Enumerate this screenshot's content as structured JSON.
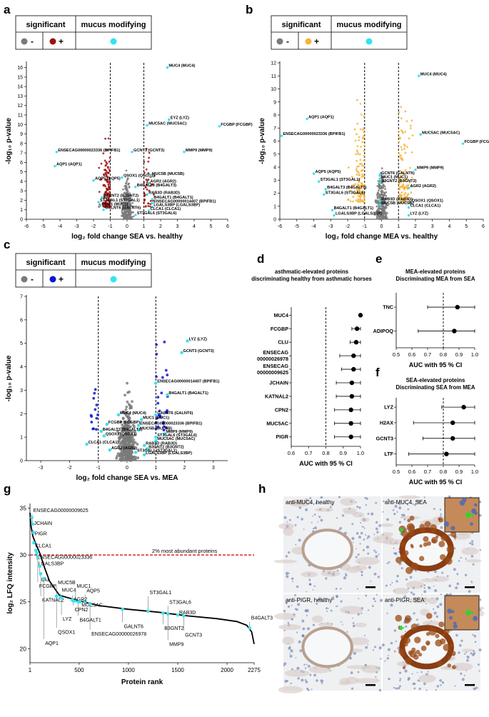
{
  "panels": {
    "a": "a",
    "b": "b",
    "c": "c",
    "d": "d",
    "e": "e",
    "f": "f",
    "g": "g",
    "h": "h"
  },
  "legend": {
    "significant": "significant",
    "mucus": "mucus modifying",
    "minus": "-",
    "plus": "+"
  },
  "colors": {
    "gray": "#7a7a7a",
    "red": "#9b1111",
    "orange": "#f4b53c",
    "blue": "#0b14d6",
    "cyan": "#35e3ee",
    "teal": "#3b8f93",
    "dashed_red": "#d10000"
  },
  "chart_data": [
    {
      "id": "a",
      "type": "scatter",
      "xlabel": "log₂ fold change SEA vs. healthy",
      "ylabel": "-log₁₀ p-value",
      "xlim": [
        -6,
        6
      ],
      "ylim": [
        0,
        16.5
      ],
      "xticks": [
        "-6",
        "-5",
        "-4",
        "-3",
        "-2",
        "-1",
        "0",
        "1",
        "2",
        "3",
        "4",
        "5",
        "6"
      ],
      "yticks": [
        "0",
        "1",
        "2",
        "3",
        "4",
        "5",
        "6",
        "7",
        "8",
        "9",
        "10",
        "11",
        "12",
        "13",
        "14",
        "15",
        "16"
      ],
      "thresholds_x": [
        -1,
        1
      ],
      "labels": [
        {
          "x": 2.4,
          "y": 16,
          "text": "MUC4 (MUC4)"
        },
        {
          "x": 2.5,
          "y": 10.5,
          "text": "EYZ (LYZ)"
        },
        {
          "x": 1.2,
          "y": 9.9,
          "text": "MUC5AC (MUC5AC)"
        },
        {
          "x": 5.5,
          "y": 9.8,
          "text": "FCGBP (FCGBP)"
        },
        {
          "x": 0.3,
          "y": 7.1,
          "text": "GCNT3 (GCNT3)"
        },
        {
          "x": -4.2,
          "y": 7.1,
          "text": "ENSECAG00000023336 (BPIFB1)"
        },
        {
          "x": 3.4,
          "y": 7.1,
          "text": "MMP9 (MMP9)"
        },
        {
          "x": -4.3,
          "y": 5.6,
          "text": "AQP1 (AQP1)"
        },
        {
          "x": -0.3,
          "y": 4.4,
          "text": "QSOX1 (QSOX1)"
        },
        {
          "x": 1.4,
          "y": 4.6,
          "text": "MUC5B (MUC5B)"
        },
        {
          "x": -2.0,
          "y": 4.1,
          "text": "AQP5 (AQP5)"
        },
        {
          "x": 1.3,
          "y": 3.8,
          "text": "AGR2 (AGR2)"
        },
        {
          "x": 0.5,
          "y": 3.4,
          "text": "B4GALT3 (B4GALT3)"
        },
        {
          "x": 1.2,
          "y": 2.6,
          "text": "RAB3D (RAB3D)"
        },
        {
          "x": -1.5,
          "y": 2.3,
          "text": "B3GNT2 (B3GNT2)"
        },
        {
          "x": 1.5,
          "y": 2.1,
          "text": "B4GALT1 (B4GALT1)"
        },
        {
          "x": -1.7,
          "y": 1.8,
          "text": "ST3GAL1 (ST3GAL1)"
        },
        {
          "x": 1.5,
          "y": 1.7,
          "text": "ENSECAG00000014407 (BPIFB1)"
        },
        {
          "x": -1.6,
          "y": 1.4,
          "text": "MUC1 (MUC1)"
        },
        {
          "x": 1.5,
          "y": 1.3,
          "text": "LGALS3BP (LGALS3BP)"
        },
        {
          "x": -1.4,
          "y": 1.0,
          "text": "GALNT6 (GALNT6)"
        },
        {
          "x": 1.3,
          "y": 0.9,
          "text": "CLCA1 (CLCA1)"
        },
        {
          "x": 0.5,
          "y": 0.45,
          "text": "ST3GAL6 (ST3GAL6)"
        }
      ]
    },
    {
      "id": "b",
      "type": "scatter",
      "xlabel": "log₂ fold change MEA vs. healthy",
      "ylabel": "-log₁₀ p-value",
      "xlim": [
        -6,
        6
      ],
      "ylim": [
        0,
        12
      ],
      "xticks": [
        "-6",
        "-5",
        "-4",
        "-3",
        "-2",
        "-1",
        "0",
        "1",
        "2",
        "3",
        "4",
        "5",
        "6"
      ],
      "yticks": [
        "0",
        "1",
        "2",
        "3",
        "4",
        "5",
        "6",
        "7",
        "8",
        "9",
        "10",
        "11",
        "12"
      ],
      "thresholds_x": [
        -1,
        1
      ],
      "labels": [
        {
          "x": 2.2,
          "y": 11,
          "text": "MUC4 (MUC4)"
        },
        {
          "x": -4.4,
          "y": 7.7,
          "text": "AQP1 (AQP1)"
        },
        {
          "x": 2.3,
          "y": 6.5,
          "text": "MUC5AC (MUC5AC)"
        },
        {
          "x": -5.9,
          "y": 6.4,
          "text": "ENSECAG00000023336 (BPIFB1)"
        },
        {
          "x": 4.8,
          "y": 5.8,
          "text": "FCGBP (FCGBP)"
        },
        {
          "x": 2.0,
          "y": 3.8,
          "text": "MMP9 (MMP9)"
        },
        {
          "x": -4.0,
          "y": 3.5,
          "text": "AQP5 (AQP5)"
        },
        {
          "x": -0.1,
          "y": 3.4,
          "text": "GCNT6 (GALNT6)"
        },
        {
          "x": -0.1,
          "y": 3.1,
          "text": "MUC1 (MUC1)"
        },
        {
          "x": -3.7,
          "y": 2.9,
          "text": "ST3GAL1 (ST3GAL1)"
        },
        {
          "x": -0.1,
          "y": 2.8,
          "text": "B3GNT2 (B3GNT2)"
        },
        {
          "x": -3.3,
          "y": 2.3,
          "text": "B4GALT3 (B4GALT3)"
        },
        {
          "x": 1.6,
          "y": 2.4,
          "text": "AGR2 (AGR2)"
        },
        {
          "x": -3.4,
          "y": 1.9,
          "text": "ST3GAL6 (ST3GAL6)"
        },
        {
          "x": -0.1,
          "y": 1.4,
          "text": "RAB3D (RAB3D)"
        },
        {
          "x": 1.7,
          "y": 1.3,
          "text": "QSOX1 (QSOX1)"
        },
        {
          "x": -0.1,
          "y": 1.1,
          "text": "MUC5B (MUC5B)"
        },
        {
          "x": 1.6,
          "y": 0.9,
          "text": "CLCA1 (CLCA1)"
        },
        {
          "x": -2.9,
          "y": 0.7,
          "text": "B4GALT1 (B4GALT1)"
        },
        {
          "x": -2.8,
          "y": 0.3,
          "text": "LGALS3BP (LGALS3BP)"
        },
        {
          "x": 1.6,
          "y": 0.3,
          "text": "LYZ (LYZ)"
        }
      ]
    },
    {
      "id": "c",
      "type": "scatter",
      "xlabel": "log₂ fold change SEA vs. MEA",
      "ylabel": "-log₁₀ p-value",
      "xlim": [
        -3.5,
        3.5
      ],
      "ylim": [
        0,
        7
      ],
      "xticks": [
        "-3",
        "-2",
        "-1",
        "0",
        "1",
        "2",
        "3"
      ],
      "yticks": [
        "0",
        "1",
        "2",
        "3",
        "4",
        "5",
        "6",
        "7"
      ],
      "thresholds_x": [
        -1,
        1
      ],
      "labels": [
        {
          "x": 2.1,
          "y": 5.1,
          "text": "LYZ (LYZ)"
        },
        {
          "x": 1.9,
          "y": 4.6,
          "text": "GCNT3 (GCNT3)"
        },
        {
          "x": 1.0,
          "y": 3.3,
          "text": "ENSECAG00000014407 (BPIFB1)"
        },
        {
          "x": 1.4,
          "y": 2.8,
          "text": "B4GALT1 (B4GALT1)"
        },
        {
          "x": 1.0,
          "y": 1.95,
          "text": "GALNT6 (GALNT6)"
        },
        {
          "x": -0.3,
          "y": 1.95,
          "text": "MUC4 (MUC4)"
        },
        {
          "x": 0.5,
          "y": 1.75,
          "text": "MUC1 (MUC1)"
        },
        {
          "x": -0.7,
          "y": 1.55,
          "text": "FCGBP (FCGBP)"
        },
        {
          "x": 0.4,
          "y": 1.5,
          "text": "ENSECAG00000023336 (BPIFB1)"
        },
        {
          "x": 0.4,
          "y": 1.3,
          "text": "MUC5B (MUC5B)"
        },
        {
          "x": -0.9,
          "y": 1.25,
          "text": "B4GALT3 (B4GALT3)"
        },
        {
          "x": 1.3,
          "y": 1.15,
          "text": "MMP9 (MMP9)"
        },
        {
          "x": -0.8,
          "y": 1.05,
          "text": "QSOX1 (QSOX1)"
        },
        {
          "x": 1.0,
          "y": 1.0,
          "text": "ST3GAL6 (ST3GAL6)"
        },
        {
          "x": 1.0,
          "y": 0.85,
          "text": "MUC5AC (MUC5AC)"
        },
        {
          "x": -1.4,
          "y": 0.7,
          "text": "CLCA1 (CLCA1)"
        },
        {
          "x": 0.6,
          "y": 0.65,
          "text": "RAB3D (RAB3D)"
        },
        {
          "x": 0.7,
          "y": 0.5,
          "text": "B3GNT2 (B3GNT2)"
        },
        {
          "x": -0.6,
          "y": 0.45,
          "text": "AGR2 (AGR2)"
        },
        {
          "x": 0.3,
          "y": 0.35,
          "text": "ST3GAL1 (ST3GAL1)"
        },
        {
          "x": 0.6,
          "y": 0.25,
          "text": "LGALS3BP (LGALS3BP)"
        }
      ]
    },
    {
      "id": "d",
      "type": "forest",
      "title": "asthmatic-elevated proteins\ndiscriminating healthy from asthmatic horses",
      "xlabel": "AUC with 95 % CI",
      "xlim": [
        0.6,
        1.0
      ],
      "xticks": [
        "0.6",
        "0.7",
        "0.8",
        "0.9",
        "1.0"
      ],
      "ref": 0.8,
      "rows": [
        {
          "label": "MUC4",
          "auc": 1.0,
          "lo": 1.0,
          "hi": 1.0
        },
        {
          "label": "FCGBP",
          "auc": 0.98,
          "lo": 0.95,
          "hi": 1.0
        },
        {
          "label": "CLU",
          "auc": 0.975,
          "lo": 0.94,
          "hi": 1.0
        },
        {
          "label": "ENSECAG\n00000026978",
          "auc": 0.96,
          "lo": 0.88,
          "hi": 1.0
        },
        {
          "label": "ENSECAG\n00000009625",
          "auc": 0.96,
          "lo": 0.89,
          "hi": 1.0
        },
        {
          "label": "JCHAIN",
          "auc": 0.95,
          "lo": 0.86,
          "hi": 1.0
        },
        {
          "label": "KATNAL2",
          "auc": 0.95,
          "lo": 0.86,
          "hi": 1.0
        },
        {
          "label": "CPN2",
          "auc": 0.945,
          "lo": 0.85,
          "hi": 1.0
        },
        {
          "label": "MUC5AC",
          "auc": 0.945,
          "lo": 0.85,
          "hi": 1.0
        },
        {
          "label": "PIGR",
          "auc": 0.945,
          "lo": 0.85,
          "hi": 1.0
        }
      ]
    },
    {
      "id": "e",
      "type": "forest",
      "title": "MEA-elevated proteins\nDiscriminating MEA from SEA",
      "xlabel": "AUC with 95 % CI",
      "xlim": [
        0.5,
        1.0
      ],
      "xticks": [
        "0.5",
        "0.6",
        "0.7",
        "0.8",
        "0.9",
        "1.0"
      ],
      "ref": 0.8,
      "rows": [
        {
          "label": "TNC",
          "auc": 0.89,
          "lo": 0.7,
          "hi": 1.0
        },
        {
          "label": "ADIPOQ",
          "auc": 0.87,
          "lo": 0.64,
          "hi": 1.0
        }
      ]
    },
    {
      "id": "f",
      "type": "forest",
      "title": "SEA-elevated proteins\nDiscriminating SEA from MEA",
      "xlabel": "AUC with 95 % CI",
      "xlim": [
        0.5,
        1.0
      ],
      "xticks": [
        "0.5",
        "0.6",
        "0.7",
        "0.8",
        "0.9",
        "1.0"
      ],
      "ref": 0.8,
      "rows": [
        {
          "label": "LYZ",
          "auc": 0.93,
          "lo": 0.79,
          "hi": 1.0
        },
        {
          "label": "H2AX",
          "auc": 0.86,
          "lo": 0.61,
          "hi": 1.0
        },
        {
          "label": "GCNT3",
          "auc": 0.86,
          "lo": 0.67,
          "hi": 1.0
        },
        {
          "label": "LTF",
          "auc": 0.82,
          "lo": 0.58,
          "hi": 1.0
        }
      ]
    },
    {
      "id": "g",
      "type": "line",
      "xlabel": "Protein rank",
      "ylabel": "log₂ LFQ intensity",
      "xlim": [
        1,
        2275
      ],
      "ylim": [
        18.5,
        35.5
      ],
      "xticks": [
        {
          "v": 1,
          "t": "1"
        },
        {
          "v": 500,
          "t": "500"
        },
        {
          "v": 1000,
          "t": "1000"
        },
        {
          "v": 1500,
          "t": "1500"
        },
        {
          "v": 2000,
          "t": "2000"
        },
        {
          "v": 2275,
          "t": "2275"
        }
      ],
      "yticks": [
        "20",
        "25",
        "30",
        "35"
      ],
      "abundance_line": {
        "y": 30,
        "text": "2% most abundant proteins"
      },
      "curve": [
        [
          1,
          34.5
        ],
        [
          10,
          33.2
        ],
        [
          30,
          32
        ],
        [
          60,
          31.2
        ],
        [
          100,
          30.2
        ],
        [
          150,
          28.6
        ],
        [
          200,
          27.2
        ],
        [
          300,
          25.7
        ],
        [
          400,
          25.4
        ],
        [
          500,
          25.1
        ],
        [
          700,
          24.6
        ],
        [
          1000,
          24.2
        ],
        [
          1300,
          23.9
        ],
        [
          1600,
          23.5
        ],
        [
          1900,
          23.2
        ],
        [
          2100,
          22.9
        ],
        [
          2200,
          22.5
        ],
        [
          2250,
          21.8
        ],
        [
          2275,
          20.5
        ]
      ],
      "labels": [
        {
          "rank": 20,
          "y": 34.0,
          "ly": 34.6,
          "text": "ENSECAG00000009625"
        },
        {
          "rank": 28,
          "y": 33.3,
          "ly": 33.2,
          "text": "JCHAIN"
        },
        {
          "rank": 35,
          "y": 32.4,
          "ly": 32.1,
          "text": "PIGR"
        },
        {
          "rank": 40,
          "y": 31.3,
          "ly": 30.8,
          "text": "CLCA1"
        },
        {
          "rank": 60,
          "y": 30.5,
          "ly": 29.6,
          "text": "ENSECAG00000023336"
        },
        {
          "rank": 70,
          "y": 30.2,
          "ly": 28.9,
          "text": "LGALS3BP"
        },
        {
          "rank": 100,
          "y": 28.8,
          "ly": 27.2,
          "text": "Clu"
        },
        {
          "rank": 80,
          "y": 29.8,
          "ly": 26.5,
          "text": "FCGBP"
        },
        {
          "rank": 110,
          "y": 28.0,
          "ly": 25.0,
          "text": "KATNAL2"
        },
        {
          "rank": 270,
          "y": 25.6,
          "ly": 26.9,
          "text": "MUC5B"
        },
        {
          "rank": 310,
          "y": 25.5,
          "ly": 26.1,
          "text": "MUC4"
        },
        {
          "rank": 460,
          "y": 25.1,
          "ly": 26.5,
          "text": "MUC1"
        },
        {
          "rank": 560,
          "y": 25.0,
          "ly": 26.0,
          "text": "AQP5"
        },
        {
          "rank": 430,
          "y": 25.2,
          "ly": 25.1,
          "text": "AGR2"
        },
        {
          "rank": 510,
          "y": 25.0,
          "ly": 24.5,
          "text": "MUC5AC"
        },
        {
          "rank": 320,
          "y": 25.4,
          "ly": 23.0,
          "text": "LYZ"
        },
        {
          "rank": 440,
          "y": 25.1,
          "ly": 24.0,
          "text": "CPN2"
        },
        {
          "rank": 490,
          "y": 25.0,
          "ly": 22.9,
          "text": "B4GALT1"
        },
        {
          "rank": 270,
          "y": 25.6,
          "ly": 21.6,
          "text": "QSOX1"
        },
        {
          "rank": 140,
          "y": 27.5,
          "ly": 20.4,
          "text": "AQP1"
        },
        {
          "rank": 940,
          "y": 24.2,
          "ly": 22.2,
          "text": "GALNT6"
        },
        {
          "rank": 610,
          "y": 24.8,
          "ly": 21.4,
          "text": "ENSECAG00000026978"
        },
        {
          "rank": 1200,
          "y": 24.0,
          "ly": 25.8,
          "text": "ST3GAL1"
        },
        {
          "rank": 1400,
          "y": 23.7,
          "ly": 24.8,
          "text": "ST3GAL6"
        },
        {
          "rank": 1500,
          "y": 23.6,
          "ly": 23.7,
          "text": "RAB3D"
        },
        {
          "rank": 1350,
          "y": 23.8,
          "ly": 22.0,
          "text": "B3GNT2"
        },
        {
          "rank": 1560,
          "y": 23.5,
          "ly": 21.3,
          "text": "GCNT3"
        },
        {
          "rank": 1400,
          "y": 23.7,
          "ly": 20.3,
          "text": "MMP9"
        },
        {
          "rank": 2230,
          "y": 22.2,
          "ly": 23.1,
          "text": "B4GALT3"
        }
      ]
    }
  ],
  "micrographs": [
    {
      "label": "anti-MUC4, healthy",
      "stained": false
    },
    {
      "label": "anti-MUC4, SEA",
      "stained": true
    },
    {
      "label": "anti-PIGR, healthy",
      "stained": false
    },
    {
      "label": "anti-PIGR, SEA",
      "stained": true
    }
  ]
}
